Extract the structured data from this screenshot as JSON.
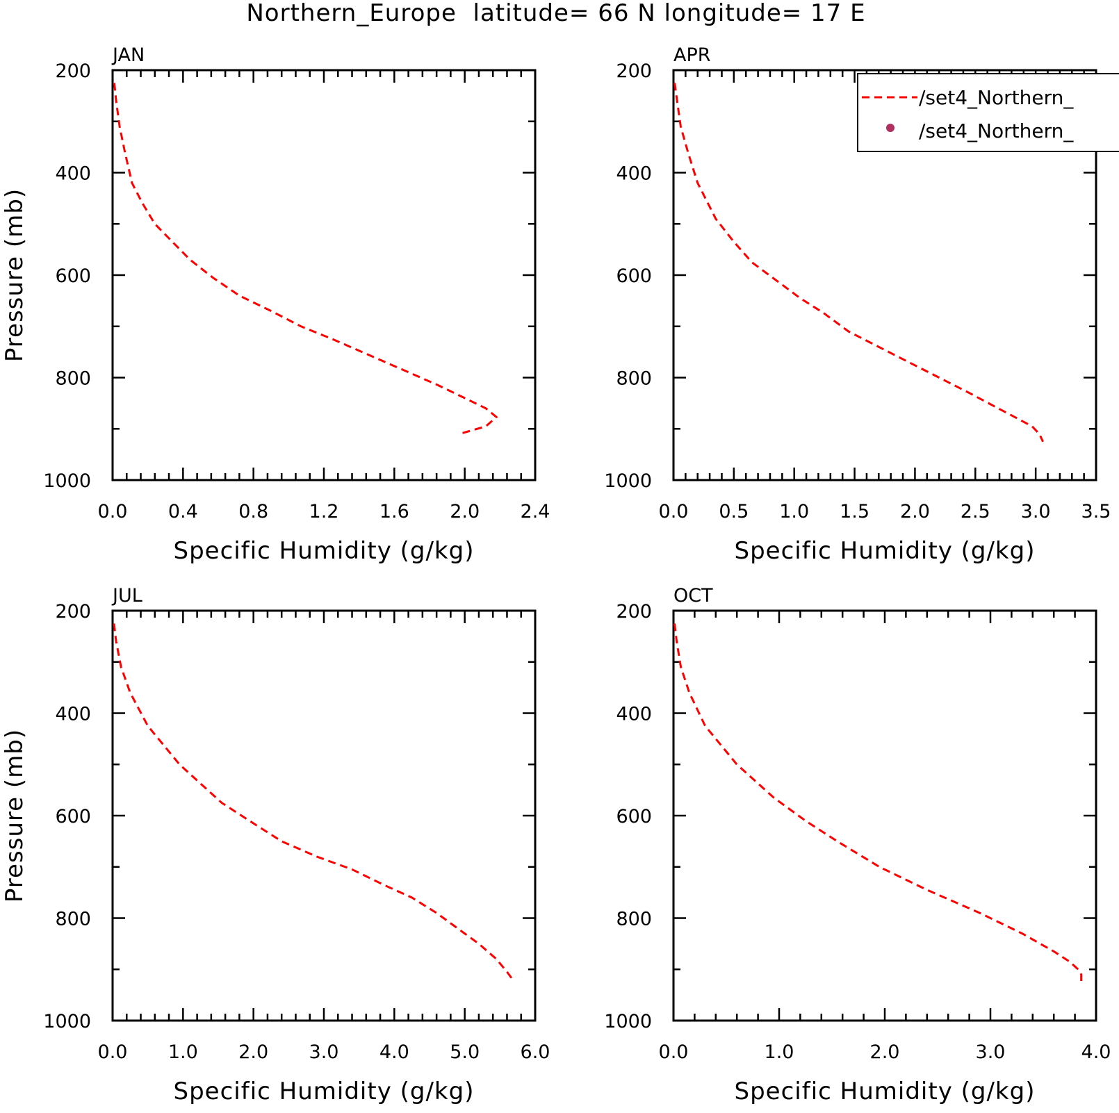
{
  "figure_title": "Northern_Europe  latitude= 66 N longitude= 17 E",
  "colors": {
    "model_line": "#ff0000",
    "obs_marker": "#b03060",
    "axes": "#000000"
  },
  "legend": {
    "entries": [
      {
        "label": "/set4_Northern_",
        "style": "dashed-line"
      },
      {
        "label": "/set4_Northern_",
        "style": "dot"
      }
    ]
  },
  "chart_data": [
    {
      "type": "line",
      "title": "JAN",
      "xlabel": "Specific Humidity (g/kg)",
      "ylabel": "Pressure (mb)",
      "xlim": [
        0,
        2.4
      ],
      "ylim": [
        200,
        1000
      ],
      "y_reversed": true,
      "x_tick_labels": [
        "0.0",
        "0.4",
        "0.8",
        "1.2",
        "1.6",
        "2.0",
        "2.4"
      ],
      "y_tick_labels": [
        "200",
        "400",
        "600",
        "800",
        "1000"
      ],
      "series": [
        {
          "line_style": "dashed",
          "color": "#ff0000",
          "x": [
            0.01,
            0.02,
            0.04,
            0.07,
            0.11,
            0.17,
            0.24,
            0.34,
            0.44,
            0.57,
            0.72,
            0.9,
            1.07,
            1.25,
            1.45,
            1.65,
            1.85,
            2.0,
            2.12,
            2.18,
            2.12,
            1.97
          ],
          "y": [
            225,
            260,
            310,
            360,
            420,
            460,
            500,
            535,
            570,
            605,
            640,
            670,
            700,
            725,
            755,
            785,
            815,
            840,
            860,
            877,
            895,
            910
          ]
        }
      ]
    },
    {
      "type": "line",
      "title": "APR",
      "xlabel": "Specific Humidity (g/kg)",
      "ylabel": "",
      "xlim": [
        0,
        3.5
      ],
      "ylim": [
        200,
        1000
      ],
      "y_reversed": true,
      "x_tick_labels": [
        "0.0",
        "0.5",
        "1.0",
        "1.5",
        "2.0",
        "2.5",
        "3.0",
        "3.5"
      ],
      "y_tick_labels": [
        "200",
        "400",
        "600",
        "800",
        "1000"
      ],
      "series": [
        {
          "line_style": "dashed",
          "color": "#ff0000",
          "x": [
            0.01,
            0.03,
            0.06,
            0.12,
            0.2,
            0.35,
            0.5,
            0.65,
            0.85,
            1.05,
            1.25,
            1.45,
            1.7,
            1.95,
            2.2,
            2.45,
            2.65,
            2.85,
            2.97,
            3.03,
            3.06
          ],
          "y": [
            225,
            260,
            310,
            360,
            420,
            490,
            535,
            575,
            610,
            645,
            675,
            710,
            740,
            770,
            800,
            830,
            855,
            880,
            895,
            910,
            925
          ]
        }
      ]
    },
    {
      "type": "line",
      "title": "JUL",
      "xlabel": "Specific Humidity (g/kg)",
      "ylabel": "Pressure (mb)",
      "xlim": [
        0,
        6.0
      ],
      "ylim": [
        200,
        1000
      ],
      "y_reversed": true,
      "x_tick_labels": [
        "0.0",
        "1.0",
        "2.0",
        "3.0",
        "4.0",
        "5.0",
        "6.0"
      ],
      "y_tick_labels": [
        "200",
        "400",
        "600",
        "800",
        "1000"
      ],
      "series": [
        {
          "line_style": "dashed",
          "color": "#ff0000",
          "x": [
            0.02,
            0.05,
            0.12,
            0.25,
            0.5,
            0.95,
            1.55,
            2.0,
            2.4,
            2.9,
            3.4,
            3.85,
            4.25,
            4.6,
            4.9,
            5.2,
            5.45,
            5.6,
            5.68
          ],
          "y": [
            225,
            260,
            310,
            360,
            425,
            500,
            575,
            615,
            650,
            680,
            705,
            735,
            760,
            790,
            820,
            850,
            880,
            905,
            920
          ]
        }
      ]
    },
    {
      "type": "line",
      "title": "OCT",
      "xlabel": "Specific Humidity (g/kg)",
      "ylabel": "",
      "xlim": [
        0,
        4.0
      ],
      "ylim": [
        200,
        1000
      ],
      "y_reversed": true,
      "x_tick_labels": [
        "0.0",
        "1.0",
        "2.0",
        "3.0",
        "4.0"
      ],
      "y_tick_labels": [
        "200",
        "400",
        "600",
        "800",
        "1000"
      ],
      "series": [
        {
          "line_style": "dashed",
          "color": "#ff0000",
          "x": [
            0.01,
            0.03,
            0.07,
            0.15,
            0.3,
            0.6,
            0.95,
            1.25,
            1.55,
            1.95,
            2.4,
            2.9,
            3.3,
            3.6,
            3.75,
            3.83,
            3.86,
            3.86
          ],
          "y": [
            225,
            260,
            310,
            360,
            425,
            500,
            565,
            610,
            650,
            700,
            745,
            790,
            830,
            865,
            885,
            900,
            910,
            925
          ]
        }
      ]
    }
  ]
}
